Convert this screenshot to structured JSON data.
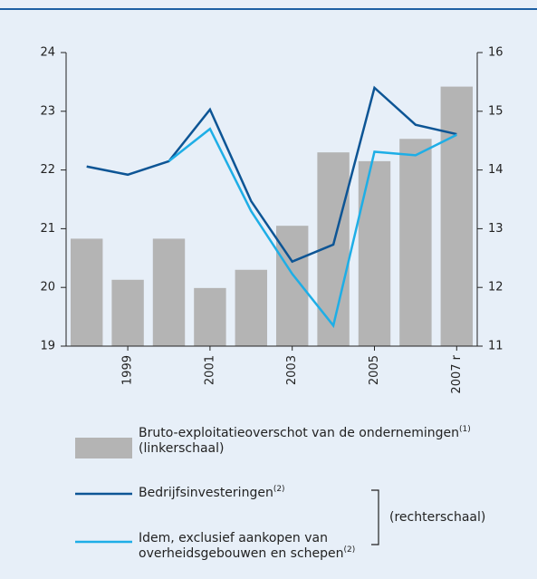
{
  "chart_data": {
    "type": "bar_line",
    "categories": [
      null,
      "1999",
      null,
      "2001",
      null,
      "2003",
      null,
      "2005",
      null,
      "2007 r"
    ],
    "ylim": [
      19,
      24
    ],
    "yticks": [
      19,
      20,
      21,
      22,
      23,
      24
    ],
    "y2lim": [
      11,
      16
    ],
    "y2ticks": [
      11,
      12,
      13,
      14,
      15,
      16
    ],
    "series": [
      {
        "name": "Bruto-exploitatieoverschot van de ondernemingen",
        "footnote": "(1)",
        "scale_note": "(linkerschaal)",
        "type": "bar",
        "color": "#b4b4b4",
        "values": [
          20.83,
          20.13,
          20.83,
          19.99,
          20.3,
          21.05,
          22.3,
          22.15,
          22.53,
          23.42
        ]
      },
      {
        "name": "Bedrijfsinvesteringen",
        "footnote": "(2)",
        "type": "line",
        "axis": "y2",
        "color": "#0d5595",
        "values": [
          14.06,
          13.92,
          14.15,
          15.03,
          13.47,
          12.44,
          12.73,
          15.4,
          14.77,
          14.61
        ]
      },
      {
        "name": "Idem, exclusief aankopen van overheidsgebouwen en schepen",
        "footnote": "(2)",
        "type": "line",
        "axis": "y2",
        "color": "#1eaee6",
        "values": [
          null,
          null,
          14.15,
          14.7,
          13.3,
          12.23,
          11.35,
          14.31,
          14.25,
          14.6
        ]
      }
    ],
    "y2_group_label": "(rechterschaal)"
  }
}
